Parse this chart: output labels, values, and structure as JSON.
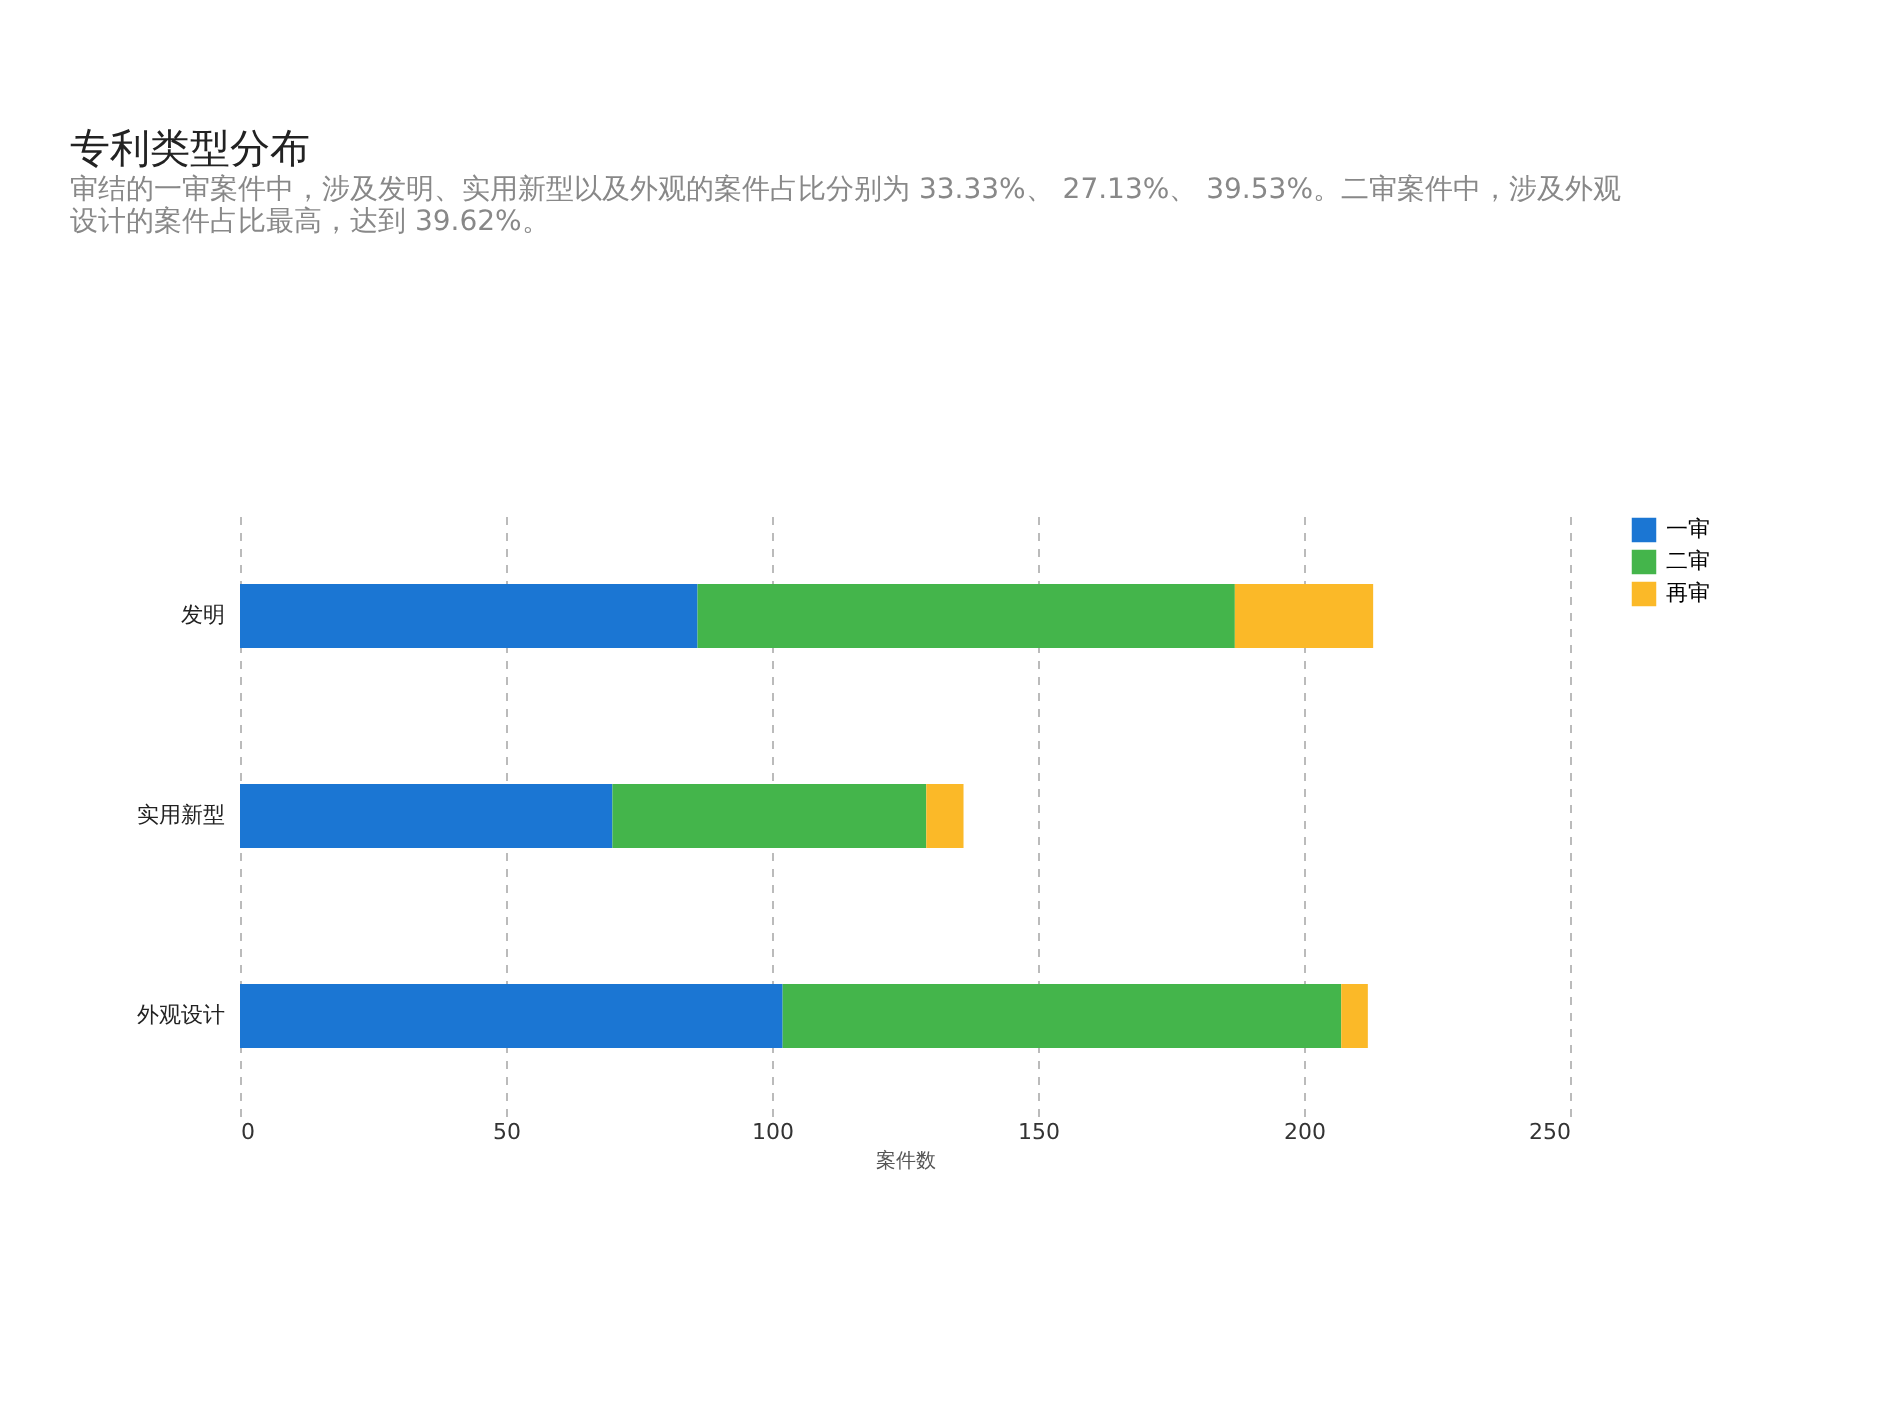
{
  "chart_data": {
    "type": "bar",
    "orientation": "horizontal",
    "stacked": true,
    "title": "专利类型分布",
    "subtitle": "审结的一审案件中，涉及发明、实用新型以及外观的案件占比分别为 33.33%、 27.13%、 39.53%。二审案件中，涉及外观设计的案件占比最高，达到 39.62%。",
    "xlabel": "案件数",
    "categories": [
      "发明",
      "实用新型",
      "外观设计"
    ],
    "series": [
      {
        "name": "一审",
        "color": "#1b76d3",
        "values": [
          86,
          70,
          102
        ]
      },
      {
        "name": "二审",
        "color": "#44b54b",
        "values": [
          101,
          59,
          105
        ]
      },
      {
        "name": "再审",
        "color": "#fbb928",
        "values": [
          26,
          7,
          5
        ]
      }
    ],
    "xlim": [
      0,
      250
    ],
    "xticks": [
      0,
      50,
      100,
      150,
      200,
      250
    ],
    "grid": "x",
    "legend": "right"
  }
}
